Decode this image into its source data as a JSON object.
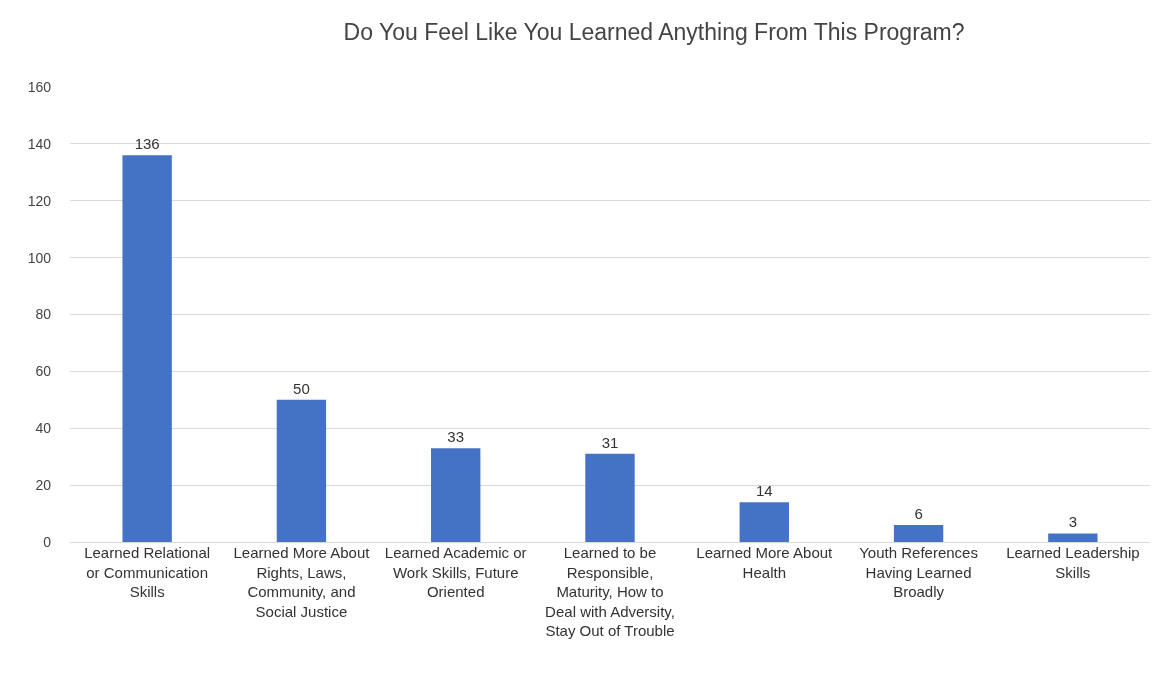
{
  "chart_data": {
    "type": "bar",
    "title": "Do You Feel Like You Learned Anything From This Program?",
    "categories": [
      "Learned Relational or Communication Skills",
      "Learned More About Rights, Laws, Community, and Social Justice",
      "Learned Academic or Work Skills, Future Oriented",
      "Learned to be Responsible, Maturity, How to Deal with Adversity, Stay Out of Trouble",
      "Learned More About Health",
      "Youth References Having Learned Broadly",
      "Learned Leadership Skills"
    ],
    "values": [
      136,
      50,
      33,
      31,
      14,
      6,
      3
    ],
    "color": "#4472c4",
    "ylim": [
      0,
      160
    ],
    "yticks": [
      0,
      20,
      40,
      60,
      80,
      100,
      120,
      140,
      160
    ],
    "grid": "y",
    "data_labels": true
  }
}
